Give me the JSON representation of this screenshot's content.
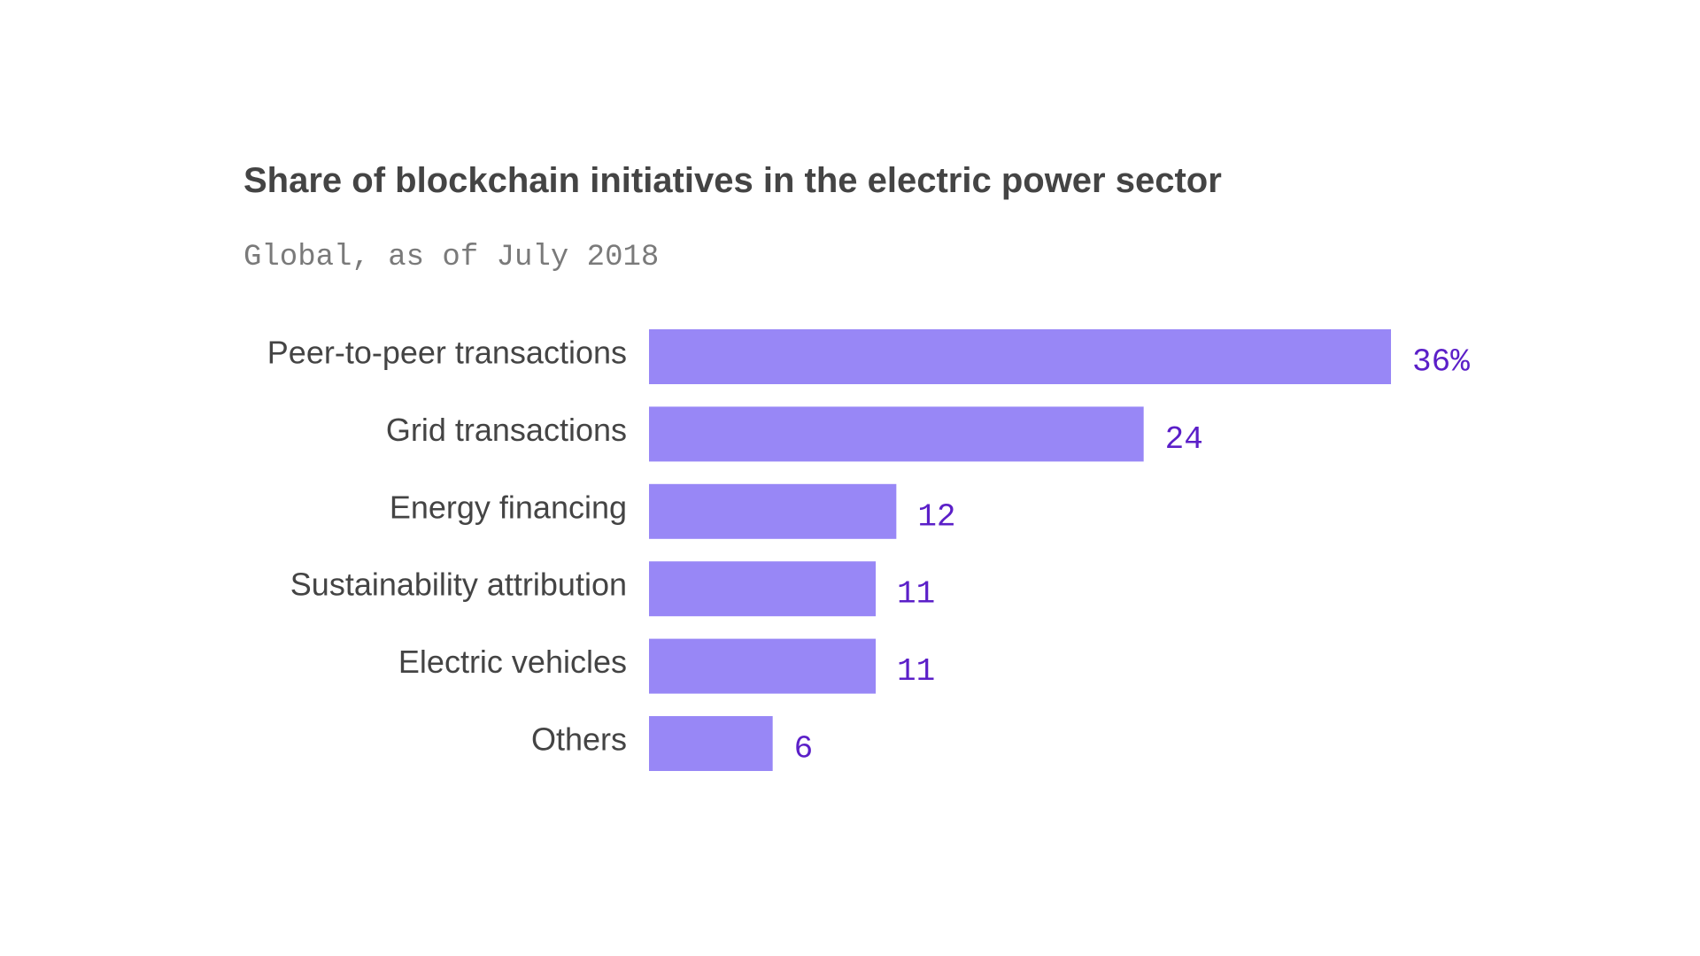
{
  "colors": {
    "bar": "#9887f6",
    "value_label": "#5b1fc8",
    "category_label": "#444444",
    "title": "#444444",
    "subtitle": "#7a7a7a"
  },
  "chart_data": {
    "type": "bar",
    "orientation": "horizontal",
    "title": "Share of blockchain initiatives in the electric power sector",
    "subtitle": "Global, as of July 2018",
    "categories": [
      "Peer-to-peer transactions",
      "Grid transactions",
      "Energy financing",
      "Sustainability attribution",
      "Electric vehicles",
      "Others"
    ],
    "values": [
      36,
      24,
      12,
      11,
      11,
      6
    ],
    "value_labels": [
      "36%",
      "24",
      "12",
      "11",
      "11",
      "6"
    ],
    "xlim": [
      0,
      36
    ],
    "grid": false,
    "legend": "none",
    "xlabel": "",
    "ylabel": ""
  }
}
